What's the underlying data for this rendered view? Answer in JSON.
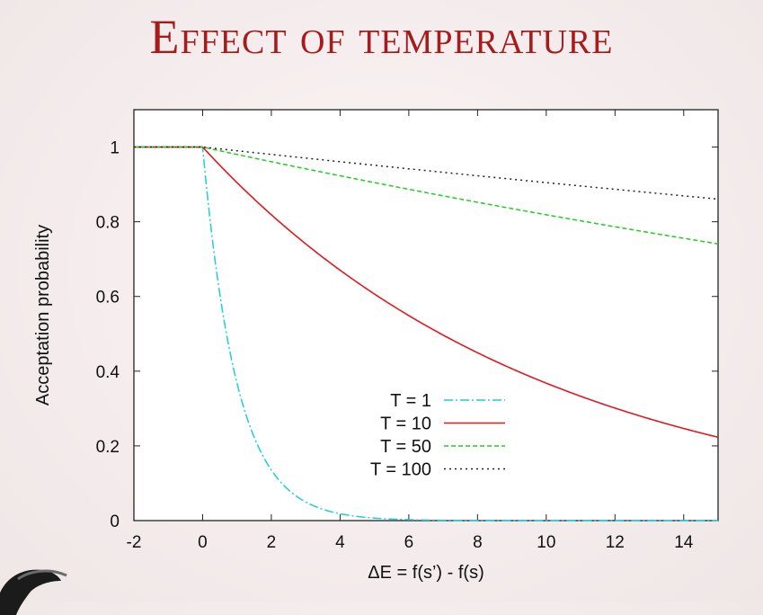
{
  "slide": {
    "title": "Effect of temperature"
  },
  "colors": {
    "title": "#a61c1c",
    "T1": "#1ccfd6",
    "T10": "#e0191f",
    "T50": "#22cc22",
    "T100": "#222222"
  },
  "chart_data": {
    "type": "line",
    "title": "",
    "xlabel": "ΔE = f(s’) - f(s)",
    "ylabel": "Acceptation probability",
    "xlim": [
      -2,
      15
    ],
    "ylim": [
      0,
      1.1
    ],
    "xticks": [
      -2,
      0,
      2,
      4,
      6,
      8,
      10,
      12,
      14
    ],
    "yticks": [
      0,
      0.2,
      0.4,
      0.6,
      0.8,
      1
    ],
    "ytick_labels": [
      "0",
      "0.2",
      "0.4",
      "0.6",
      "0.8",
      "1"
    ],
    "grid": false,
    "legend_position": "bottom-center",
    "function": "P(ΔE) = 1 if ΔE <= 0, else exp(-ΔE / T)",
    "series": [
      {
        "name": "T = 1",
        "T": 1,
        "color": "#1ccfd6",
        "dash": "10 3 2 3",
        "x": [
          -2,
          0,
          1,
          2,
          3,
          4,
          5,
          6,
          8,
          15
        ],
        "values": [
          1,
          1,
          0.37,
          0.14,
          0.05,
          0.02,
          0.007,
          0.002,
          0.0003,
          0
        ]
      },
      {
        "name": "T = 10",
        "T": 10,
        "color": "#e0191f",
        "dash": "",
        "x": [
          -2,
          0,
          2,
          4,
          6,
          8,
          10,
          12,
          14,
          15
        ],
        "values": [
          1,
          1,
          0.82,
          0.67,
          0.55,
          0.45,
          0.37,
          0.3,
          0.25,
          0.22
        ]
      },
      {
        "name": "T = 50",
        "T": 50,
        "color": "#22cc22",
        "dash": "5 3",
        "x": [
          -2,
          0,
          5,
          10,
          15
        ],
        "values": [
          1,
          1,
          0.9,
          0.82,
          0.74
        ]
      },
      {
        "name": "T = 100",
        "T": 100,
        "color": "#222222",
        "dash": "2 4",
        "x": [
          -2,
          0,
          5,
          10,
          15
        ],
        "values": [
          1,
          1,
          0.95,
          0.9,
          0.86
        ]
      }
    ]
  }
}
